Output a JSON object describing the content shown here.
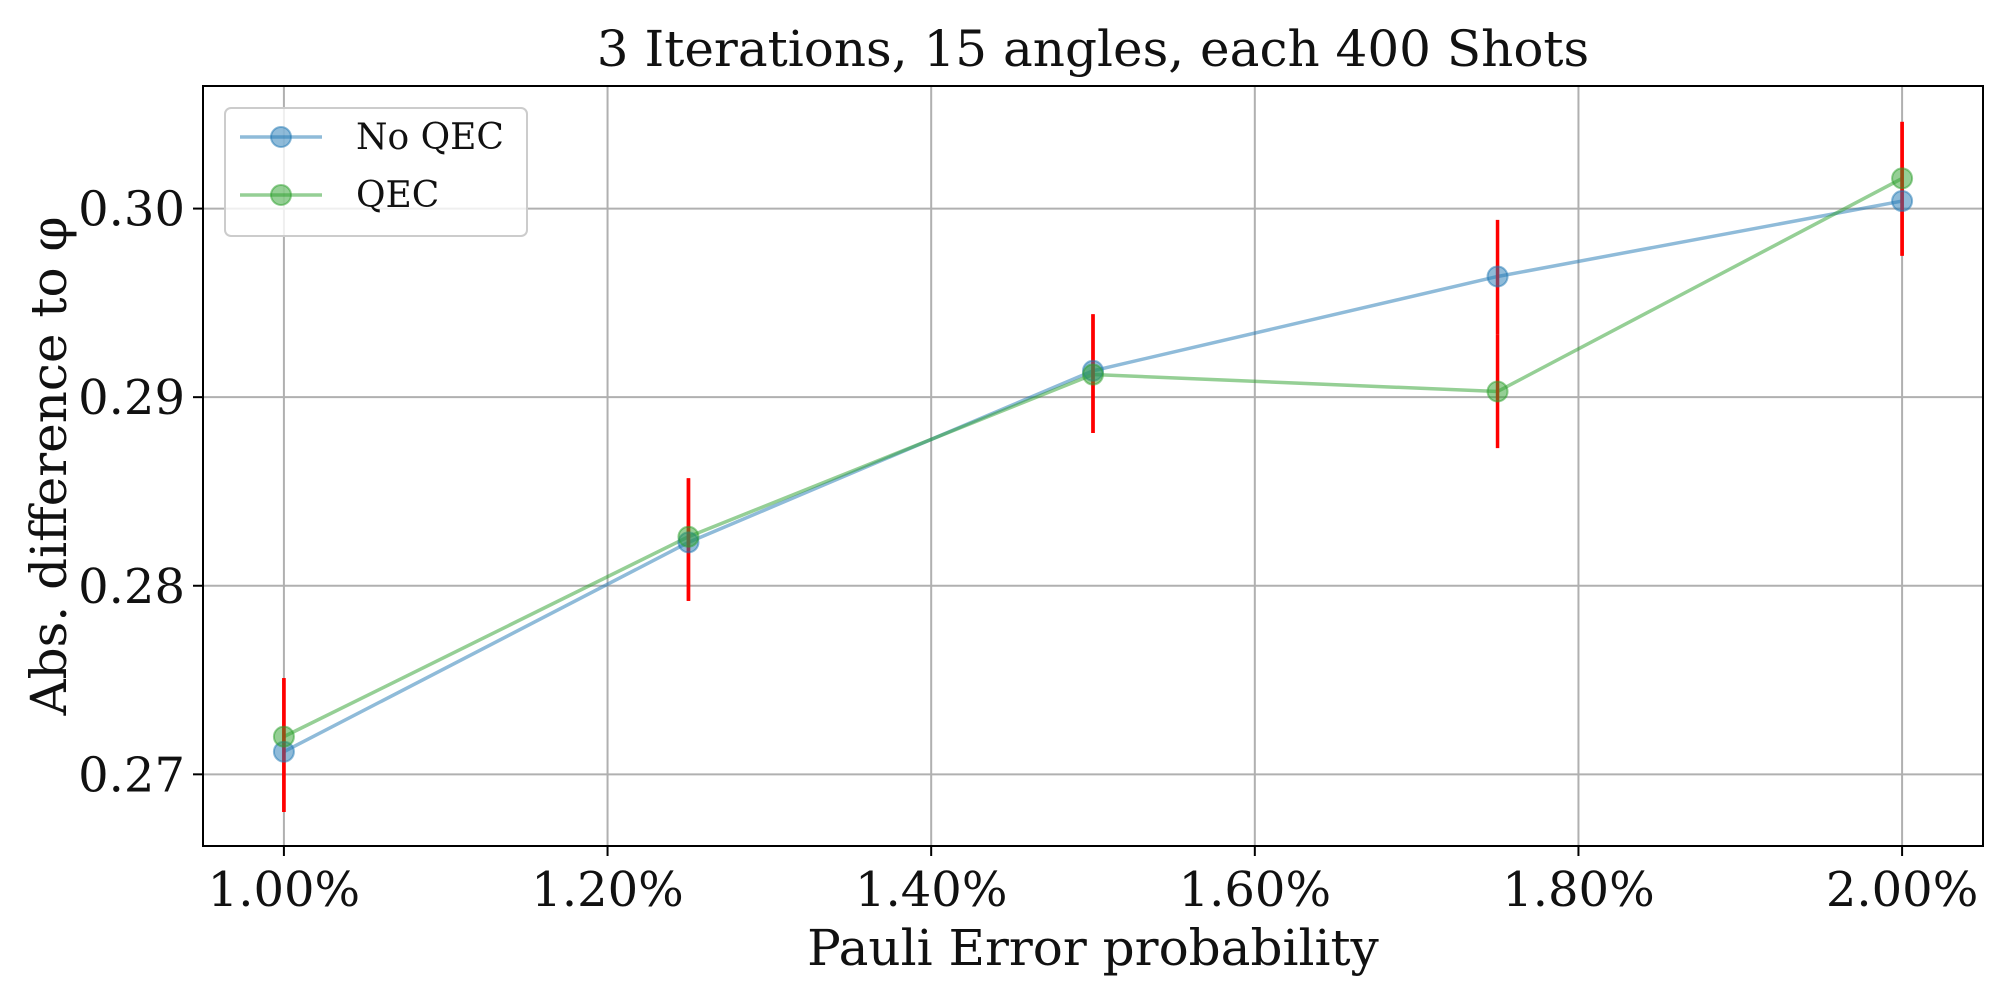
{
  "chart_data": {
    "type": "line",
    "title": "3 Iterations, 15 angles, each 400 Shots",
    "xlabel": "Pauli Error probability",
    "ylabel": "Abs. difference to φ",
    "x": [
      1.0,
      1.25,
      1.5,
      1.75,
      2.0
    ],
    "x_unit": "%",
    "xlim": [
      0.95,
      2.05
    ],
    "ylim": [
      0.2662,
      0.3065
    ],
    "xticks": [
      1.0,
      1.2,
      1.4,
      1.6,
      1.8,
      2.0
    ],
    "xtick_labels": [
      "1.00%",
      "1.20%",
      "1.40%",
      "1.60%",
      "1.80%",
      "2.00%"
    ],
    "yticks": [
      0.27,
      0.28,
      0.29,
      0.3
    ],
    "ytick_labels": [
      "0.27",
      "0.28",
      "0.29",
      "0.30"
    ],
    "grid": true,
    "legend_position": "top-left",
    "series": [
      {
        "name": "No QEC",
        "color": "#1f77b4",
        "values": [
          0.2712,
          0.2823,
          0.2914,
          0.2964,
          0.3004
        ],
        "error_low": [
          0.268,
          0.2792,
          0.2881,
          0.2933,
          0.2975
        ],
        "error_high": [
          0.2751,
          0.2857,
          0.2944,
          0.2994,
          0.3046
        ]
      },
      {
        "name": "QEC",
        "color": "#2ca02c",
        "values": [
          0.272,
          0.2826,
          0.2912,
          0.2903,
          0.3016
        ],
        "error_low": [
          0.268,
          0.2792,
          0.2881,
          0.2873,
          0.2975
        ],
        "error_high": [
          0.2751,
          0.2857,
          0.2944,
          0.2933,
          0.3046
        ]
      }
    ],
    "error_bar_color": "#ff0000"
  }
}
